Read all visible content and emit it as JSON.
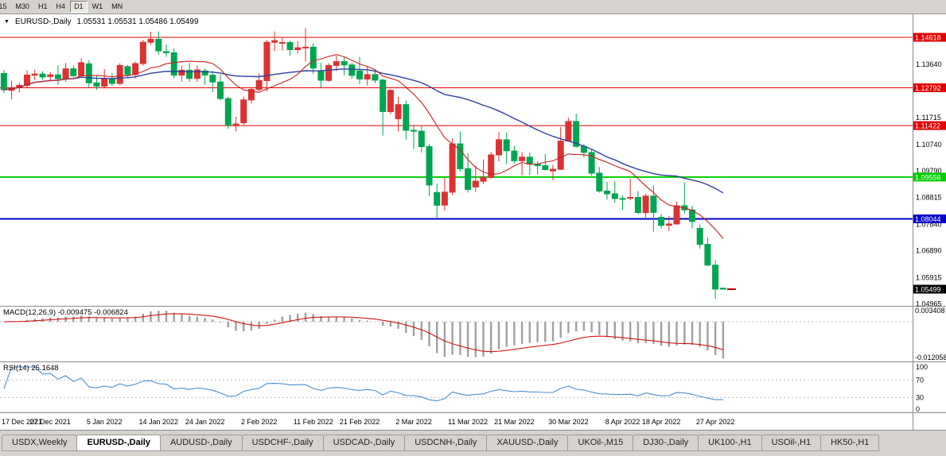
{
  "toolbar": {
    "timeframes": [
      {
        "label": "M15",
        "clipped": true
      },
      {
        "label": "M30"
      },
      {
        "label": "H1"
      },
      {
        "label": "H4"
      },
      {
        "label": "D1"
      },
      {
        "label": "W1"
      },
      {
        "label": "MN"
      }
    ],
    "active": "D1"
  },
  "chart": {
    "collapse_arrow": "▼",
    "symbol": "EURUSD-,Daily",
    "ohlc": "1.05531 1.05531 1.05486 1.05499",
    "colors": {
      "bull": "#db3232",
      "bear": "#00a551",
      "ma_fast": "#cc2020",
      "ma_slow": "#2e3f9e",
      "macd_hist": "#a0a0a0",
      "macd_signal": "#cc0000",
      "rsi": "#4b8fcc",
      "price_marker_bg": "#000000"
    },
    "levels": [
      {
        "label": "1.14618",
        "price": 1.14618,
        "color": "#e00000",
        "width": 1
      },
      {
        "label": "1.12792",
        "price": 1.12792,
        "color": "#e00000",
        "width": 1
      },
      {
        "label": "1.11422",
        "price": 1.11422,
        "color": "#e00000",
        "width": 1
      },
      {
        "label": "1.09556",
        "price": 1.09556,
        "color": "#00ce00",
        "width": 2
      },
      {
        "label": "1.08044",
        "price": 1.08044,
        "color": "#0000c8",
        "width": 2
      }
    ],
    "current_price": {
      "label": "1.05499",
      "price": 1.05499
    },
    "y_ticks": [
      {
        "label": "1.13640",
        "price": 1.1364
      },
      {
        "label": "1.11715",
        "price": 1.11715
      },
      {
        "label": "1.10740",
        "price": 1.1074
      },
      {
        "label": "1.09790",
        "price": 1.0979
      },
      {
        "label": "1.08815",
        "price": 1.08815
      },
      {
        "label": "1.07840",
        "price": 1.0784
      },
      {
        "label": "1.06890",
        "price": 1.0689
      },
      {
        "label": "1.05915",
        "price": 1.05915
      },
      {
        "label": "1.04965",
        "price": 1.04965
      }
    ],
    "macd_axis_labels": [
      "0.003408",
      "-0.012058"
    ],
    "rsi_levels": [
      {
        "label": "100",
        "value": 100
      },
      {
        "label": "70",
        "value": 70
      },
      {
        "label": "30",
        "value": 30
      },
      {
        "label": "0",
        "value": 0
      }
    ],
    "date_ticks": [
      {
        "label": "17 Dec 2021",
        "i": 0
      },
      {
        "label": "27 Dec 2021",
        "i": 6
      },
      {
        "label": "5 Jan 2022",
        "i": 13
      },
      {
        "label": "14 Jan 2022",
        "i": 20
      },
      {
        "label": "24 Jan 2022",
        "i": 26
      },
      {
        "label": "2 Feb 2022",
        "i": 33
      },
      {
        "label": "11 Feb 2022",
        "i": 40
      },
      {
        "label": "21 Feb 2022",
        "i": 46
      },
      {
        "label": "2 Mar 2022",
        "i": 53
      },
      {
        "label": "11 Mar 2022",
        "i": 60
      },
      {
        "label": "21 Mar 2022",
        "i": 66
      },
      {
        "label": "30 Mar 2022",
        "i": 73
      },
      {
        "label": "8 Apr 2022",
        "i": 80
      },
      {
        "label": "18 Apr 2022",
        "i": 85
      },
      {
        "label": "27 Apr 2022",
        "i": 92
      }
    ]
  },
  "macd_panel": {
    "title": "MACD(12,26,9) -0.009475 -0.006824"
  },
  "rsi_panel": {
    "title": "RSI(14) 25.1648"
  },
  "tabbar": {
    "tabs": [
      "USDX,Weekly",
      "EURUSD-,Daily",
      "AUDUSD-,Daily",
      "USDCHF-,Daily",
      "USDCAD-,Daily",
      "USDCNH-,Daily",
      "XAUUSD-,Daily",
      "UKOil-,M15",
      "DJ30-,Daily",
      "UK100-,H1",
      "USOil-,H1",
      "HK50-,H1"
    ],
    "active_index": 1
  },
  "chart_data": {
    "type": "candlestick",
    "title": "EURUSD Daily with MACD(12,26,9) and RSI(14)",
    "y_axis": "price",
    "visible_price_range": [
      1.0491,
      1.1525
    ],
    "overlays": [
      {
        "name": "fast-ma",
        "type": "sma",
        "period": 10,
        "color": "#cc2020"
      },
      {
        "name": "slow-ma",
        "type": "sma",
        "period": 30,
        "color": "#2e3f9e"
      }
    ],
    "indicators": [
      {
        "name": "MACD",
        "settings": "12,26,9",
        "current_values": [
          -0.009475,
          -0.006824
        ]
      },
      {
        "name": "RSI",
        "settings": "14",
        "current_value": 25.1648
      }
    ],
    "dates": [
      "2021.12.17",
      "2021.12.20",
      "2021.12.21",
      "2021.12.22",
      "2021.12.23",
      "2021.12.24",
      "2021.12.27",
      "2021.12.28",
      "2021.12.29",
      "2021.12.30",
      "2021.12.31",
      "2022.01.03",
      "2022.01.04",
      "2022.01.05",
      "2022.01.06",
      "2022.01.07",
      "2022.01.10",
      "2022.01.11",
      "2022.01.12",
      "2022.01.13",
      "2022.01.14",
      "2022.01.17",
      "2022.01.18",
      "2022.01.19",
      "2022.01.20",
      "2022.01.21",
      "2022.01.24",
      "2022.01.25",
      "2022.01.26",
      "2022.01.27",
      "2022.01.28",
      "2022.01.31",
      "2022.02.01",
      "2022.02.02",
      "2022.02.03",
      "2022.02.04",
      "2022.02.07",
      "2022.02.08",
      "2022.02.09",
      "2022.02.10",
      "2022.02.11",
      "2022.02.14",
      "2022.02.15",
      "2022.02.16",
      "2022.02.17",
      "2022.02.18",
      "2022.02.21",
      "2022.02.22",
      "2022.02.23",
      "2022.02.24",
      "2022.02.25",
      "2022.02.28",
      "2022.03.01",
      "2022.03.02",
      "2022.03.03",
      "2022.03.04",
      "2022.03.07",
      "2022.03.08",
      "2022.03.09",
      "2022.03.10",
      "2022.03.11",
      "2022.03.14",
      "2022.03.15",
      "2022.03.16",
      "2022.03.17",
      "2022.03.18",
      "2022.03.21",
      "2022.03.22",
      "2022.03.23",
      "2022.03.24",
      "2022.03.25",
      "2022.03.28",
      "2022.03.29",
      "2022.03.30",
      "2022.03.31",
      "2022.04.01",
      "2022.04.04",
      "2022.04.05",
      "2022.04.06",
      "2022.04.07",
      "2022.04.08",
      "2022.04.11",
      "2022.04.12",
      "2022.04.13",
      "2022.04.14",
      "2022.04.18",
      "2022.04.19",
      "2022.04.20",
      "2022.04.21",
      "2022.04.22",
      "2022.04.25",
      "2022.04.26",
      "2022.04.27",
      "2022.04.28"
    ],
    "open": [
      1.1331,
      1.127,
      1.1281,
      1.1288,
      1.1325,
      1.1329,
      1.132,
      1.1326,
      1.1312,
      1.1348,
      1.1323,
      1.1366,
      1.1297,
      1.1285,
      1.1312,
      1.1295,
      1.1356,
      1.1327,
      1.1367,
      1.1444,
      1.1455,
      1.141,
      1.1406,
      1.1325,
      1.1343,
      1.1313,
      1.134,
      1.1325,
      1.13,
      1.124,
      1.1144,
      1.1152,
      1.1235,
      1.1273,
      1.1305,
      1.1444,
      1.1443,
      1.1443,
      1.1417,
      1.1424,
      1.1426,
      1.134,
      1.1306,
      1.136,
      1.1374,
      1.1362,
      1.134,
      1.1311,
      1.1327,
      1.1307,
      1.1193,
      1.1167,
      1.1218,
      1.1125,
      1.1122,
      1.1066,
      1.09,
      1.0854,
      1.0901,
      1.1076,
      1.0986,
      1.092,
      1.0941,
      1.0955,
      1.1036,
      1.1091,
      1.105,
      1.1015,
      1.1028,
      1.1003,
      1.0997,
      1.0978,
      1.0984,
      1.1086,
      1.1157,
      1.1067,
      1.1045,
      1.097,
      1.0905,
      1.0895,
      1.0878,
      1.088,
      1.0882,
      1.0827,
      1.0887,
      1.081,
      1.0781,
      1.0786,
      1.0852,
      1.0837,
      1.077,
      1.0712,
      1.0637,
      1.05531
    ],
    "high": [
      1.1344,
      1.1305,
      1.1298,
      1.1342,
      1.1344,
      1.1338,
      1.1336,
      1.136,
      1.1369,
      1.136,
      1.1386,
      1.1379,
      1.1323,
      1.1347,
      1.1332,
      1.1368,
      1.1362,
      1.1374,
      1.1453,
      1.1482,
      1.1483,
      1.1436,
      1.1422,
      1.1359,
      1.1369,
      1.136,
      1.1349,
      1.134,
      1.1328,
      1.1246,
      1.1174,
      1.1248,
      1.128,
      1.1331,
      1.1452,
      1.1483,
      1.1462,
      1.1449,
      1.1448,
      1.1495,
      1.144,
      1.1369,
      1.1368,
      1.1395,
      1.1392,
      1.137,
      1.1391,
      1.1359,
      1.1342,
      1.1311,
      1.1274,
      1.1246,
      1.1233,
      1.1145,
      1.1141,
      1.1075,
      1.0933,
      1.0952,
      1.1096,
      1.1121,
      1.1043,
      1.0996,
      1.102,
      1.1047,
      1.1119,
      1.1117,
      1.1069,
      1.1046,
      1.1044,
      1.1014,
      1.1039,
      1.1,
      1.1137,
      1.1171,
      1.1185,
      1.1077,
      1.1055,
      1.0992,
      1.0939,
      1.094,
      1.089,
      1.095,
      1.0905,
      1.0896,
      1.0925,
      1.0822,
      1.0815,
      1.0867,
      1.0936,
      1.0852,
      1.0784,
      1.0738,
      1.0655,
      1.05531
    ],
    "low": [
      1.126,
      1.1237,
      1.1262,
      1.128,
      1.1308,
      1.1308,
      1.1304,
      1.129,
      1.1302,
      1.1316,
      1.1321,
      1.1279,
      1.1272,
      1.128,
      1.1285,
      1.1288,
      1.1314,
      1.1313,
      1.136,
      1.1435,
      1.1398,
      1.1392,
      1.1314,
      1.1302,
      1.1301,
      1.13,
      1.129,
      1.1263,
      1.1234,
      1.1131,
      1.1121,
      1.1141,
      1.1222,
      1.1266,
      1.1266,
      1.1411,
      1.1414,
      1.1396,
      1.1403,
      1.1375,
      1.133,
      1.128,
      1.1301,
      1.134,
      1.1324,
      1.1312,
      1.1293,
      1.1287,
      1.1296,
      1.1106,
      1.1184,
      1.1121,
      1.109,
      1.1058,
      1.1045,
      1.0886,
      1.0806,
      1.0834,
      1.0891,
      1.0976,
      1.09,
      1.0902,
      1.093,
      1.0949,
      1.1012,
      1.1003,
      1.1005,
      1.0962,
      1.0963,
      1.0965,
      1.0979,
      1.0944,
      1.0981,
      1.1084,
      1.1061,
      1.1027,
      1.0961,
      1.0899,
      1.0874,
      1.0863,
      1.0836,
      1.0872,
      1.0821,
      1.0809,
      1.0758,
      1.0769,
      1.0761,
      1.0783,
      1.0824,
      1.077,
      1.0697,
      1.0633,
      1.0514,
      1.05486
    ],
    "close": [
      1.1272,
      1.128,
      1.1288,
      1.1325,
      1.1329,
      1.1318,
      1.1326,
      1.1312,
      1.1348,
      1.1323,
      1.137,
      1.1297,
      1.1285,
      1.1312,
      1.1295,
      1.136,
      1.1327,
      1.1367,
      1.1444,
      1.1455,
      1.1413,
      1.1406,
      1.1325,
      1.1343,
      1.1313,
      1.1344,
      1.1325,
      1.13,
      1.124,
      1.1144,
      1.1148,
      1.1235,
      1.1273,
      1.1305,
      1.1444,
      1.145,
      1.1443,
      1.1417,
      1.1424,
      1.1426,
      1.135,
      1.1306,
      1.136,
      1.1374,
      1.1362,
      1.1324,
      1.1311,
      1.1327,
      1.1307,
      1.1193,
      1.127,
      1.1218,
      1.1125,
      1.1122,
      1.1066,
      1.0927,
      1.0854,
      1.0901,
      1.1076,
      1.0986,
      1.0911,
      1.0941,
      1.0955,
      1.1036,
      1.1091,
      1.1051,
      1.1015,
      1.1028,
      1.1003,
      1.0997,
      1.0983,
      1.0984,
      1.1086,
      1.1157,
      1.1067,
      1.1045,
      1.097,
      1.0905,
      1.0895,
      1.0878,
      1.0876,
      1.0882,
      1.0827,
      1.0887,
      1.0828,
      1.0781,
      1.0786,
      1.0852,
      1.0837,
      1.0795,
      1.0712,
      1.0637,
      1.055,
      1.05499
    ]
  }
}
